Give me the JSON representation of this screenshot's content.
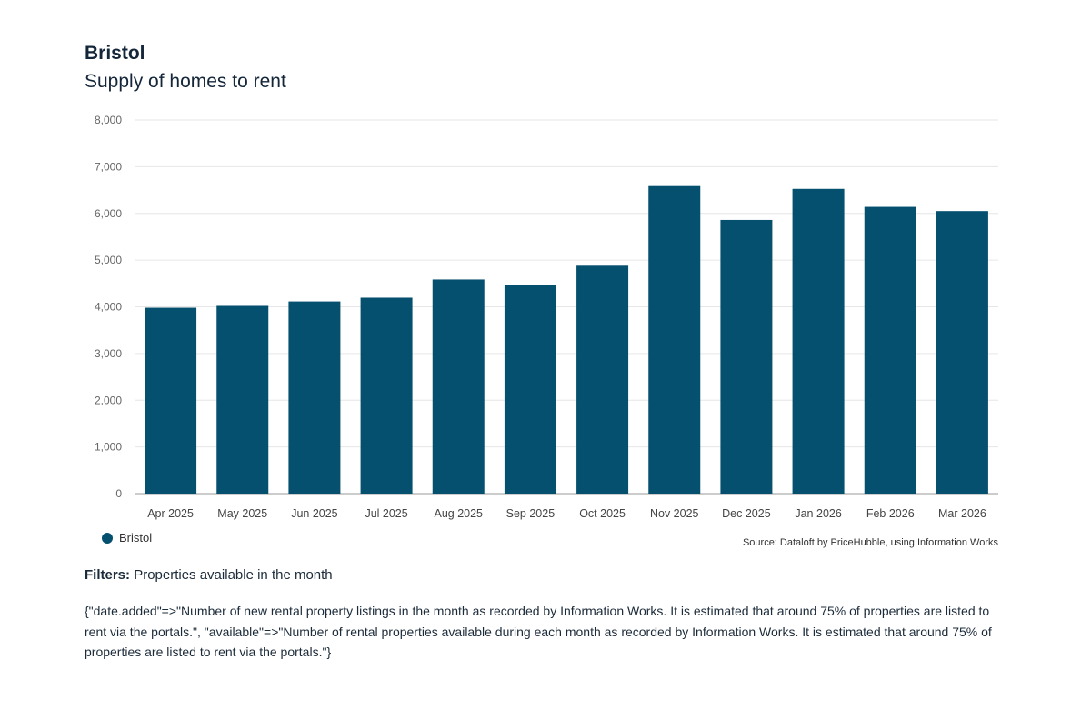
{
  "header": {
    "title": "Bristol",
    "subtitle": "Supply of homes to rent"
  },
  "colors": {
    "bar": "#06506f",
    "grid": "#e6e6e6",
    "axis_text": "#666666"
  },
  "chart_data": {
    "type": "bar",
    "title": "Supply of homes to rent",
    "categories": [
      "Apr 2025",
      "May 2025",
      "Jun 2025",
      "Jul 2025",
      "Aug 2025",
      "Sep 2025",
      "Oct 2025",
      "Nov 2025",
      "Dec 2025",
      "Jan 2026",
      "Feb 2026",
      "Mar 2026"
    ],
    "series": [
      {
        "name": "Bristol",
        "values": [
          3980,
          4020,
          4115,
          4195,
          4585,
          4470,
          4880,
          6585,
          5860,
          6525,
          6140,
          6050
        ]
      }
    ],
    "ylim": [
      0,
      8000
    ],
    "yticks": [
      0,
      1000,
      2000,
      3000,
      4000,
      5000,
      6000,
      7000,
      8000
    ],
    "ytick_labels": [
      "0",
      "1,000",
      "2,000",
      "3,000",
      "4,000",
      "5,000",
      "6,000",
      "7,000",
      "8,000"
    ],
    "xlabel": "",
    "ylabel": "",
    "grid": true,
    "legend": "bottom-left"
  },
  "legend": {
    "label": "Bristol"
  },
  "source": "Source: Dataloft by PriceHubble, using Information Works",
  "filters": {
    "label": "Filters:",
    "value": "Properties available in the month"
  },
  "note": "{\"date.added\"=>\"Number of new rental property listings in the month as recorded by Information Works. It is estimated that around 75% of properties are listed to rent via the portals.\", \"available\"=>\"Number of rental properties available during each month as recorded by Information Works. It is estimated that around 75% of properties are listed to rent via the portals.\"}"
}
